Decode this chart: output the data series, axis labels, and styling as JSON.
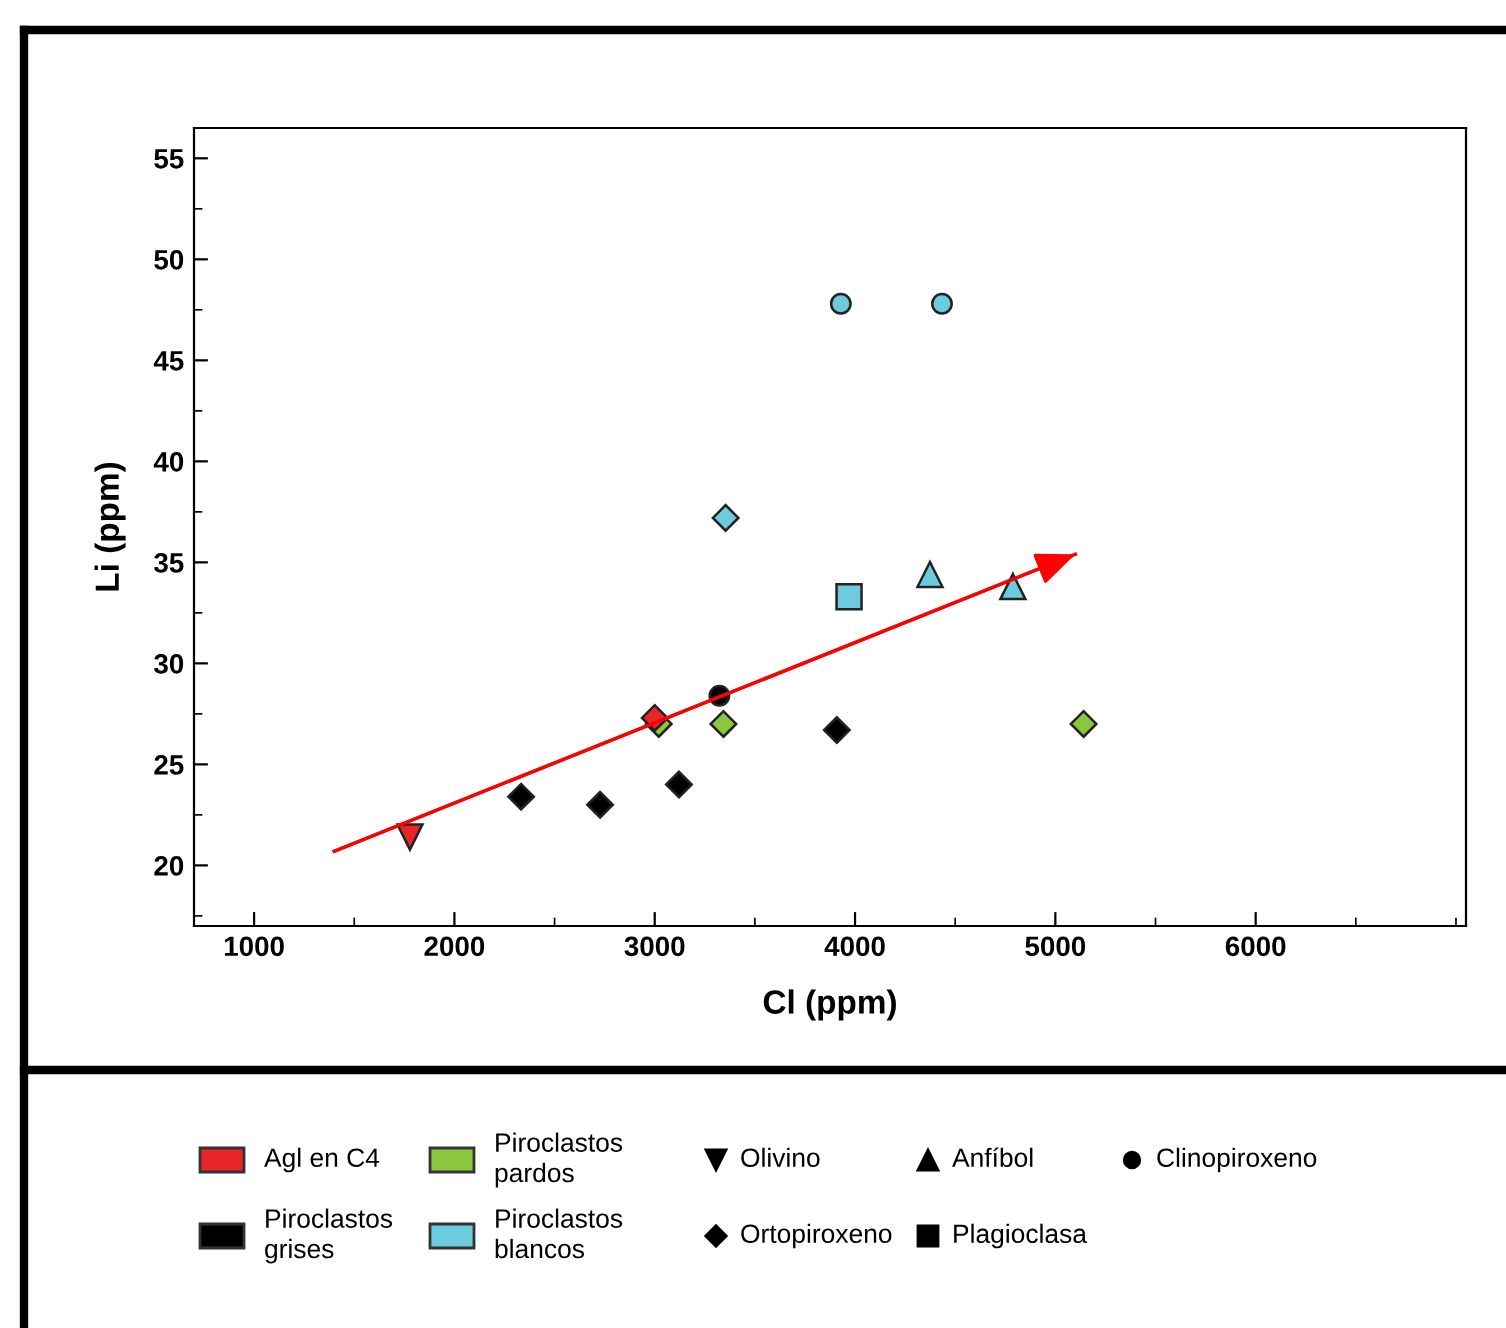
{
  "chart_data": {
    "type": "scatter",
    "xlabel": "Cl (ppm)",
    "ylabel": "Li (ppm)",
    "xlim": [
      700,
      7050
    ],
    "ylim": [
      17,
      56.5
    ],
    "xticks": [
      1000,
      2000,
      3000,
      4000,
      5000,
      6000
    ],
    "yticks": [
      20,
      25,
      30,
      35,
      40,
      45,
      50,
      55
    ],
    "grid": false,
    "series": [
      {
        "color": "#e8262a",
        "marker": "triangle_down",
        "x": [
          1778
        ],
        "values": [
          21.4
        ]
      },
      {
        "color": "#8cc63f",
        "marker": "diamond",
        "x": [
          3020,
          3343,
          5141
        ],
        "values": [
          27.0,
          27.0,
          27.0
        ]
      },
      {
        "color": "#e8262a",
        "marker": "diamond",
        "x": [
          3000
        ],
        "values": [
          27.3
        ]
      },
      {
        "color": "#000000",
        "marker": "diamond",
        "x": [
          2333,
          2727,
          3121,
          3909
        ],
        "values": [
          23.4,
          23.0,
          24.0,
          26.7
        ]
      },
      {
        "color": "#000000",
        "marker": "circle",
        "x": [
          3323
        ],
        "values": [
          28.4
        ]
      },
      {
        "color": "#6ccbdc",
        "marker": "circle",
        "x": [
          3929,
          4434
        ],
        "values": [
          47.8,
          47.8
        ]
      },
      {
        "color": "#6ccbdc",
        "marker": "diamond",
        "x": [
          3354
        ],
        "values": [
          37.2
        ]
      },
      {
        "color": "#6ccbdc",
        "marker": "square",
        "x": [
          3970
        ],
        "values": [
          33.3
        ]
      },
      {
        "color": "#6ccbdc",
        "marker": "triangle",
        "x": [
          4374,
          4788
        ],
        "values": [
          34.4,
          33.8
        ]
      },
      {
        "type": "line",
        "color": "#ff0000",
        "x": [
          1400,
          5100
        ],
        "values": [
          20.7,
          35.4
        ]
      }
    ],
    "annotations": [
      "Agl en C4",
      "Piroclastos\ngrises",
      "Piroclastos\npardos",
      "Piroclastos\nblancos",
      "Olivino",
      "Ortopiroxeno",
      "Anfíbol",
      "Plagioclasa",
      "Clinopiroxeno"
    ]
  }
}
